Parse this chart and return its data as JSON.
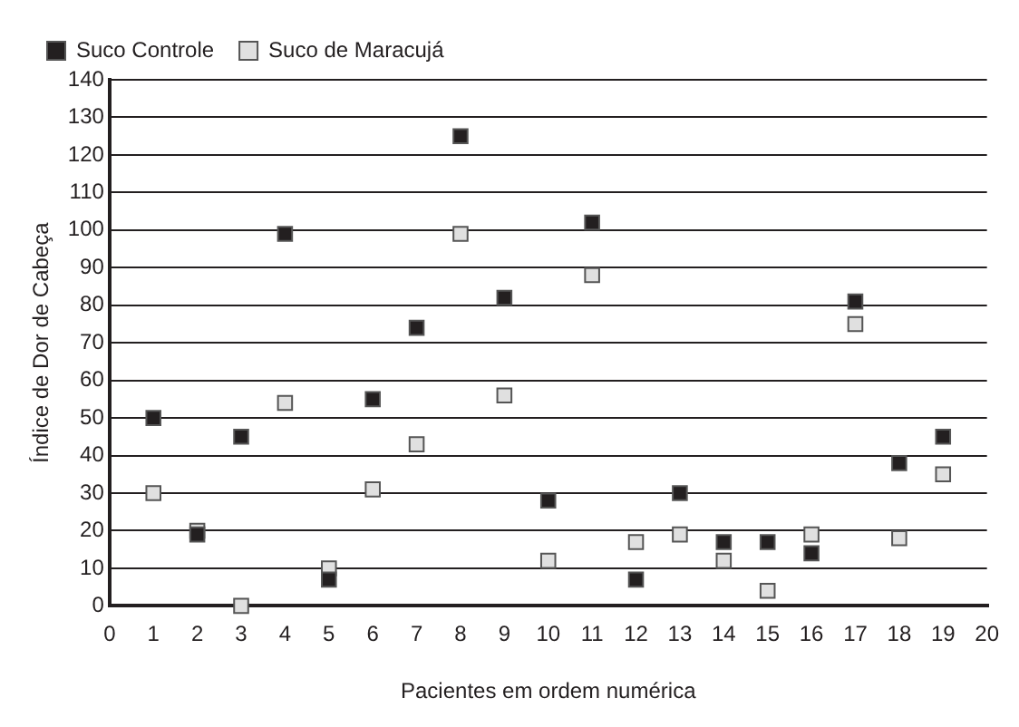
{
  "chart_data": {
    "type": "scatter",
    "xlabel": "Pacientes em ordem numérica",
    "ylabel": "Índice de Dor de Cabeça",
    "x": [
      1,
      2,
      3,
      4,
      5,
      6,
      7,
      8,
      9,
      10,
      11,
      12,
      13,
      14,
      15,
      16,
      17,
      18,
      19
    ],
    "series": [
      {
        "name": "Suco Controle",
        "color": "#231f20",
        "values": [
          50,
          19,
          45,
          99,
          7,
          55,
          74,
          125,
          82,
          28,
          102,
          7,
          30,
          17,
          17,
          14,
          81,
          38,
          45
        ]
      },
      {
        "name": "Suco de Maracujá",
        "color": "#e0e0e0",
        "values": [
          30,
          20,
          0,
          54,
          10,
          31,
          43,
          99,
          56,
          12,
          88,
          17,
          19,
          12,
          4,
          19,
          75,
          18,
          35
        ]
      }
    ],
    "xlim": [
      0,
      20
    ],
    "xticks": [
      0,
      1,
      2,
      3,
      4,
      5,
      6,
      7,
      8,
      9,
      10,
      11,
      12,
      13,
      14,
      15,
      16,
      17,
      18,
      19,
      20
    ],
    "ylim": [
      0,
      140
    ],
    "yticks": [
      0,
      10,
      20,
      30,
      40,
      50,
      60,
      70,
      80,
      90,
      100,
      110,
      120,
      130,
      140
    ],
    "grid": "y",
    "legend": "top left",
    "marker": "square"
  }
}
